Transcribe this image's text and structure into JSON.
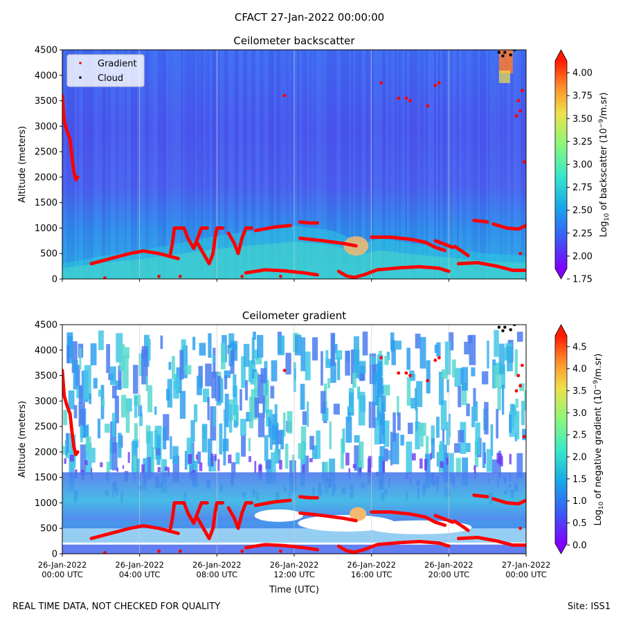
{
  "suptitle": "CFACT 27-Jan-2022 00:00:00",
  "footer": {
    "left": "REAL TIME DATA, NOT CHECKED FOR QUALITY",
    "right": "Site: ISS1"
  },
  "colors": {
    "gradient_marker": "#ff0000",
    "cloud_marker": "#000000"
  },
  "chart_data": [
    {
      "type": "heatmap",
      "title": "Ceilometer backscatter",
      "ylabel": "Altitude (meters)",
      "xlabel": "",
      "xlim_hours": [
        0,
        24
      ],
      "ylim": [
        0,
        4500
      ],
      "yticks": [
        0,
        500,
        1000,
        1500,
        2000,
        2500,
        3000,
        3500,
        4000,
        4500
      ],
      "xtick_hours": [
        0,
        4,
        8,
        12,
        16,
        20,
        24
      ],
      "xtick_labels": [],
      "colorbar": {
        "label": "Log10 of backscatter (10^-9/m.sr)",
        "range": [
          1.75,
          4.25
        ],
        "ticks": [
          "1.75",
          "2.00",
          "2.25",
          "2.50",
          "2.75",
          "3.00",
          "3.25",
          "3.50",
          "3.75",
          "4.00"
        ],
        "extend": "both"
      },
      "legend": {
        "placement": "top-left",
        "entries": [
          "Gradient",
          "Cloud"
        ]
      },
      "boundary_layer_meters": [
        [
          0,
          300
        ],
        [
          2,
          450
        ],
        [
          4,
          550
        ],
        [
          6,
          700
        ],
        [
          8,
          850
        ],
        [
          10,
          950
        ],
        [
          12,
          1050
        ],
        [
          14,
          950
        ],
        [
          15.5,
          700
        ],
        [
          16.5,
          800
        ],
        [
          18,
          700
        ],
        [
          20,
          600
        ],
        [
          22,
          500
        ],
        [
          24,
          450
        ]
      ],
      "gradient_tracks": [
        [
          [
            0.0,
            3600
          ],
          [
            0.1,
            3100
          ],
          [
            0.25,
            2900
          ],
          [
            0.4,
            2750
          ],
          [
            0.5,
            2400
          ],
          [
            0.6,
            2100
          ],
          [
            0.7,
            1950
          ],
          [
            0.8,
            2000
          ]
        ],
        [
          [
            1.5,
            300
          ],
          [
            2.5,
            400
          ],
          [
            3.5,
            500
          ],
          [
            4.2,
            550
          ],
          [
            5.0,
            500
          ],
          [
            5.5,
            450
          ],
          [
            6.0,
            400
          ]
        ],
        [
          [
            5.6,
            500
          ],
          [
            5.7,
            700
          ],
          [
            5.8,
            1000
          ],
          [
            6.3,
            1000
          ],
          [
            6.5,
            800
          ],
          [
            6.8,
            600
          ],
          [
            7.0,
            800
          ],
          [
            7.2,
            1000
          ],
          [
            7.5,
            1000
          ]
        ],
        [
          [
            7.0,
            700
          ],
          [
            7.3,
            500
          ],
          [
            7.6,
            300
          ],
          [
            7.8,
            500
          ],
          [
            7.9,
            800
          ],
          [
            8.0,
            1000
          ],
          [
            8.3,
            1000
          ]
        ],
        [
          [
            8.6,
            900
          ],
          [
            8.9,
            700
          ],
          [
            9.1,
            500
          ],
          [
            9.3,
            800
          ],
          [
            9.5,
            1000
          ],
          [
            9.8,
            1000
          ]
        ],
        [
          [
            10.0,
            950
          ],
          [
            11.0,
            1020
          ],
          [
            11.8,
            1050
          ]
        ],
        [
          [
            12.3,
            1120
          ],
          [
            12.8,
            1100
          ],
          [
            13.2,
            1100
          ]
        ],
        [
          [
            12.3,
            800
          ],
          [
            13.5,
            750
          ],
          [
            14.5,
            700
          ],
          [
            15.2,
            650
          ]
        ],
        [
          [
            16.0,
            820
          ],
          [
            17.0,
            820
          ],
          [
            18.0,
            780
          ],
          [
            18.8,
            720
          ],
          [
            19.3,
            620
          ],
          [
            19.8,
            560
          ]
        ],
        [
          [
            19.3,
            750
          ],
          [
            19.8,
            680
          ],
          [
            20.2,
            620
          ]
        ],
        [
          [
            20.3,
            640
          ],
          [
            20.7,
            540
          ],
          [
            21.0,
            460
          ]
        ],
        [
          [
            21.3,
            1150
          ],
          [
            22.0,
            1120
          ]
        ],
        [
          [
            22.3,
            1080
          ],
          [
            23.0,
            1000
          ],
          [
            23.6,
            980
          ],
          [
            24.0,
            1050
          ]
        ],
        [
          [
            20.5,
            300
          ],
          [
            21.5,
            320
          ],
          [
            22.5,
            250
          ],
          [
            23.3,
            170
          ],
          [
            24.0,
            170
          ]
        ],
        [
          [
            9.5,
            120
          ],
          [
            10.5,
            180
          ],
          [
            11.5,
            160
          ],
          [
            12.5,
            120
          ],
          [
            13.2,
            80
          ]
        ],
        [
          [
            14.3,
            150
          ],
          [
            14.7,
            60
          ],
          [
            15.1,
            30
          ],
          [
            15.6,
            80
          ],
          [
            16.3,
            180
          ],
          [
            17.5,
            220
          ],
          [
            18.5,
            240
          ],
          [
            19.5,
            210
          ],
          [
            20.0,
            150
          ]
        ]
      ],
      "gradient_points": [
        [
          5.0,
          50
        ],
        [
          6.1,
          50
        ],
        [
          9.3,
          50
        ],
        [
          11.3,
          50
        ],
        [
          2.2,
          20
        ],
        [
          11.5,
          3600
        ],
        [
          17.4,
          3550
        ],
        [
          18.0,
          3500
        ],
        [
          18.9,
          3400
        ],
        [
          19.3,
          3800
        ],
        [
          19.5,
          3850
        ],
        [
          17.8,
          3550
        ],
        [
          23.8,
          3700
        ],
        [
          23.6,
          3500
        ],
        [
          23.7,
          3300
        ],
        [
          23.5,
          3200
        ],
        [
          23.9,
          2300
        ],
        [
          16.5,
          3850
        ],
        [
          23.7,
          500
        ]
      ],
      "cloud_points": [
        [
          22.6,
          4450
        ],
        [
          22.9,
          4450
        ],
        [
          23.2,
          4400
        ],
        [
          23.4,
          4500
        ],
        [
          22.8,
          4380
        ]
      ]
    },
    {
      "type": "heatmap",
      "title": "Ceilometer gradient",
      "ylabel": "Altitude (meters)",
      "xlabel": "Time (UTC)",
      "xlim_hours": [
        0,
        24
      ],
      "ylim": [
        0,
        4500
      ],
      "yticks": [
        0,
        500,
        1000,
        1500,
        2000,
        2500,
        3000,
        3500,
        4000,
        4500
      ],
      "xtick_hours": [
        0,
        4,
        8,
        12,
        16,
        20,
        24
      ],
      "xtick_labels": [
        [
          "26-Jan-2022",
          "00:00 UTC"
        ],
        [
          "26-Jan-2022",
          "04:00 UTC"
        ],
        [
          "26-Jan-2022",
          "08:00 UTC"
        ],
        [
          "26-Jan-2022",
          "12:00 UTC"
        ],
        [
          "26-Jan-2022",
          "16:00 UTC"
        ],
        [
          "26-Jan-2022",
          "20:00 UTC"
        ],
        [
          "27-Jan-2022",
          "00:00 UTC"
        ]
      ],
      "colorbar": {
        "label": "Log10 of negative gradient (10^-9/m.sr)",
        "range": [
          -0.2,
          5.0
        ],
        "ticks": [
          "0.0",
          "0.5",
          "1.0",
          "1.5",
          "2.0",
          "2.5",
          "3.0",
          "3.5",
          "4.0",
          "4.5"
        ],
        "extend": "both"
      },
      "legend": null,
      "band_meters": [
        1000,
        1600
      ],
      "gradient_tracks": "same_as_backscatter"
    }
  ]
}
